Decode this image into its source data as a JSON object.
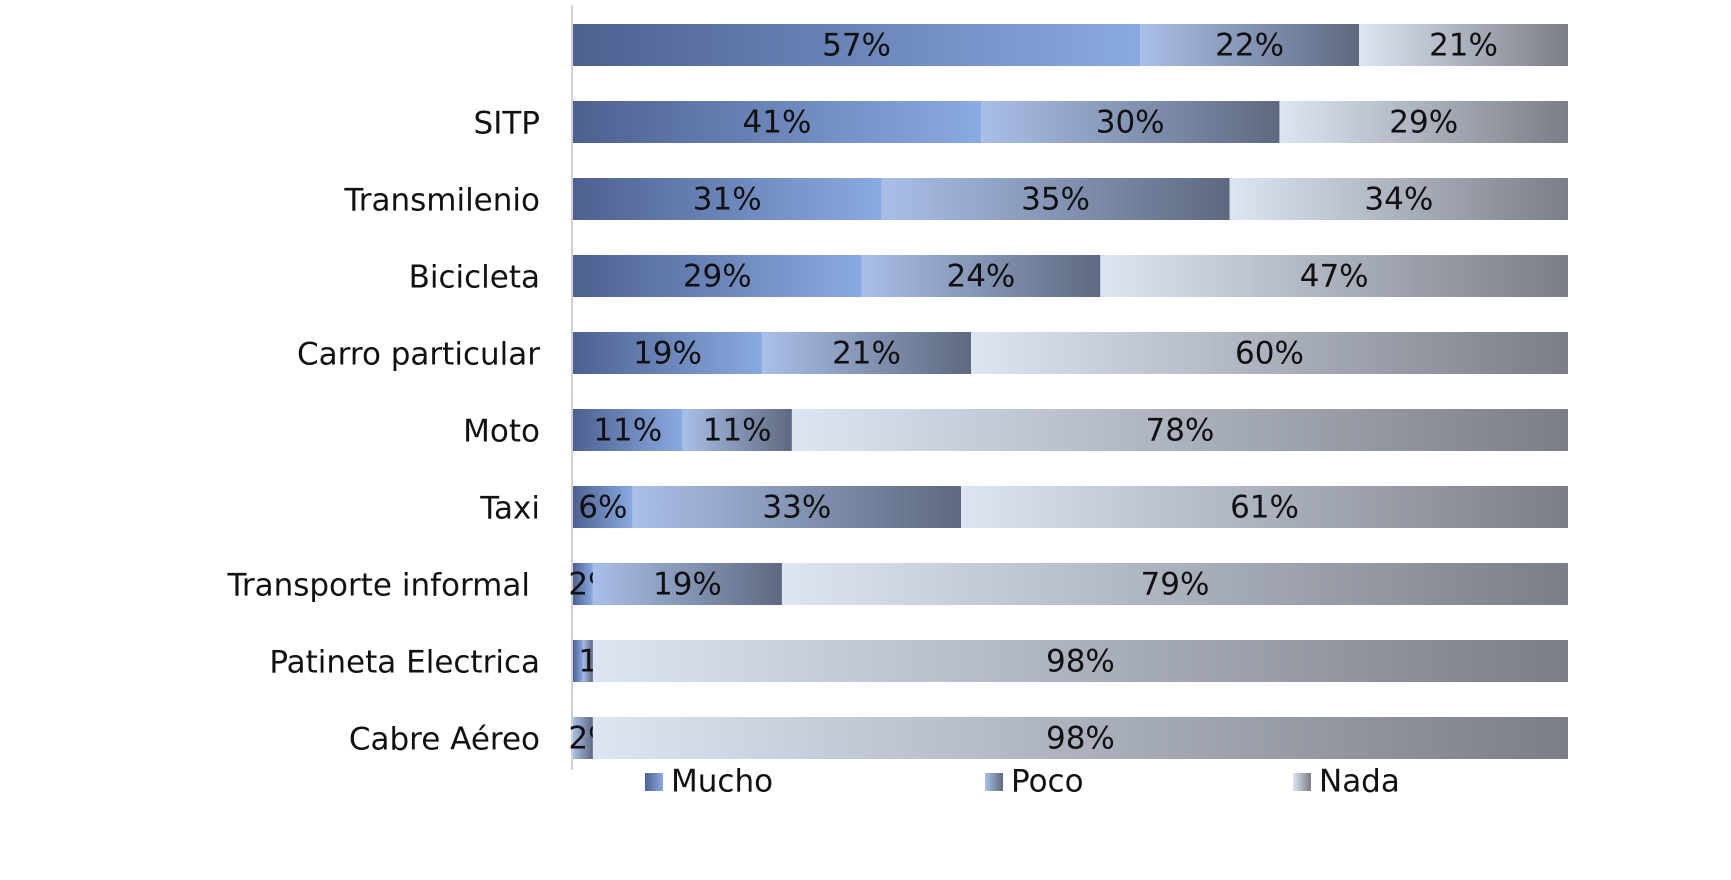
{
  "chart_data": {
    "type": "stacked-barh",
    "categories": [
      null,
      "SITP",
      "Transmilenio",
      "Bicicleta",
      "Carro particular",
      "Moto",
      "Taxi",
      "Transporte informal",
      "Patineta Electrica",
      "Cabre Aéreo"
    ],
    "xlim": [
      0,
      100
    ],
    "legend": "bottom",
    "series": [
      {
        "name": "Mucho",
        "color": "#4d6190",
        "values": [
          57,
          41,
          31,
          29,
          19,
          11,
          6,
          2,
          1,
          0
        ],
        "value_labels": [
          "57%",
          "41%",
          "31%",
          "29%",
          "19%",
          "11%",
          "6%",
          "2%",
          null,
          null
        ]
      },
      {
        "name": "Poco",
        "color": "#aabfe8",
        "values": [
          22,
          30,
          35,
          24,
          21,
          11,
          33,
          19,
          1,
          2
        ],
        "value_labels": [
          "22%",
          "30%",
          "35%",
          "24%",
          "21%",
          "11%",
          "33%",
          "19%",
          "1%",
          "2%"
        ]
      },
      {
        "name": "Nada",
        "color": "#dde5f3",
        "values": [
          21,
          29,
          34,
          47,
          60,
          78,
          61,
          79,
          98,
          98
        ],
        "value_labels": [
          "21%",
          "29%",
          "34%",
          "47%",
          "60%",
          "78%",
          "61%",
          "79%",
          "98%",
          "98%"
        ]
      }
    ]
  }
}
